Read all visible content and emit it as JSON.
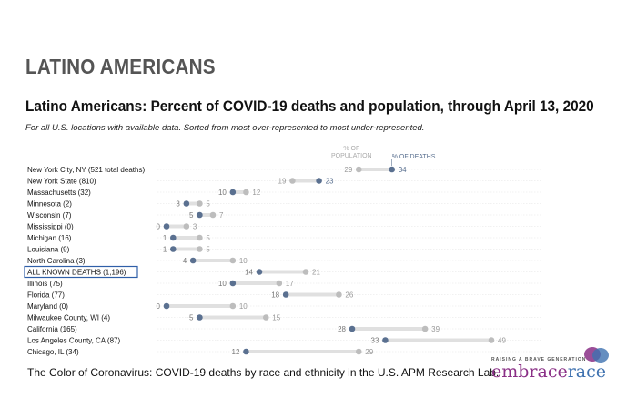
{
  "slide_title": "LATINO AMERICANS",
  "caption": "The Color of Coronavirus: COVID-19 deaths by race and ethnicity in the U.S. APM Research Lab.",
  "logo": {
    "tagline": "RAISING A BRAVE GENERATION",
    "word1": "embrace",
    "word2": "race"
  },
  "colors": {
    "deaths": "#5a7090",
    "population": "#bdbdbd",
    "highlight_box": "#2f5fa8",
    "logo_purple": "#8a2f86",
    "logo_blue": "#3f72b0"
  },
  "chart_data": {
    "type": "dot-range",
    "title": "Latino Americans: Percent of COVID-19 deaths and population, through April 13, 2020",
    "subtitle": "For all U.S. locations with available data. Sorted from most over-represented to most under-represented.",
    "legend": {
      "population": "% OF POPULATION",
      "deaths": "% OF DEATHS"
    },
    "xlim": [
      0,
      49
    ],
    "grid": true,
    "highlighted_category": "ALL KNOWN DEATHS (1,196)",
    "categories": [
      "New York City, NY (521 total deaths)",
      "New York State (810)",
      "Massachusetts (32)",
      "Minnesota (2)",
      "Wisconsin (7)",
      "Mississippi (0)",
      "Michigan (16)",
      "Louisiana (9)",
      "North Carolina (3)",
      "ALL KNOWN DEATHS (1,196)",
      "Illinois (75)",
      "Florida (77)",
      "Maryland (0)",
      "Milwaukee County, WI (4)",
      "California (165)",
      "Los Angeles County, CA (87)",
      "Chicago, IL (34)"
    ],
    "series": [
      {
        "name": "% OF DEATHS",
        "values": [
          34,
          23,
          10,
          3,
          5,
          0,
          1,
          1,
          4,
          14,
          10,
          18,
          0,
          5,
          28,
          33,
          12
        ]
      },
      {
        "name": "% OF POPULATION",
        "values": [
          29,
          19,
          12,
          5,
          7,
          3,
          5,
          5,
          10,
          21,
          17,
          26,
          10,
          15,
          39,
          49,
          29
        ]
      }
    ]
  }
}
